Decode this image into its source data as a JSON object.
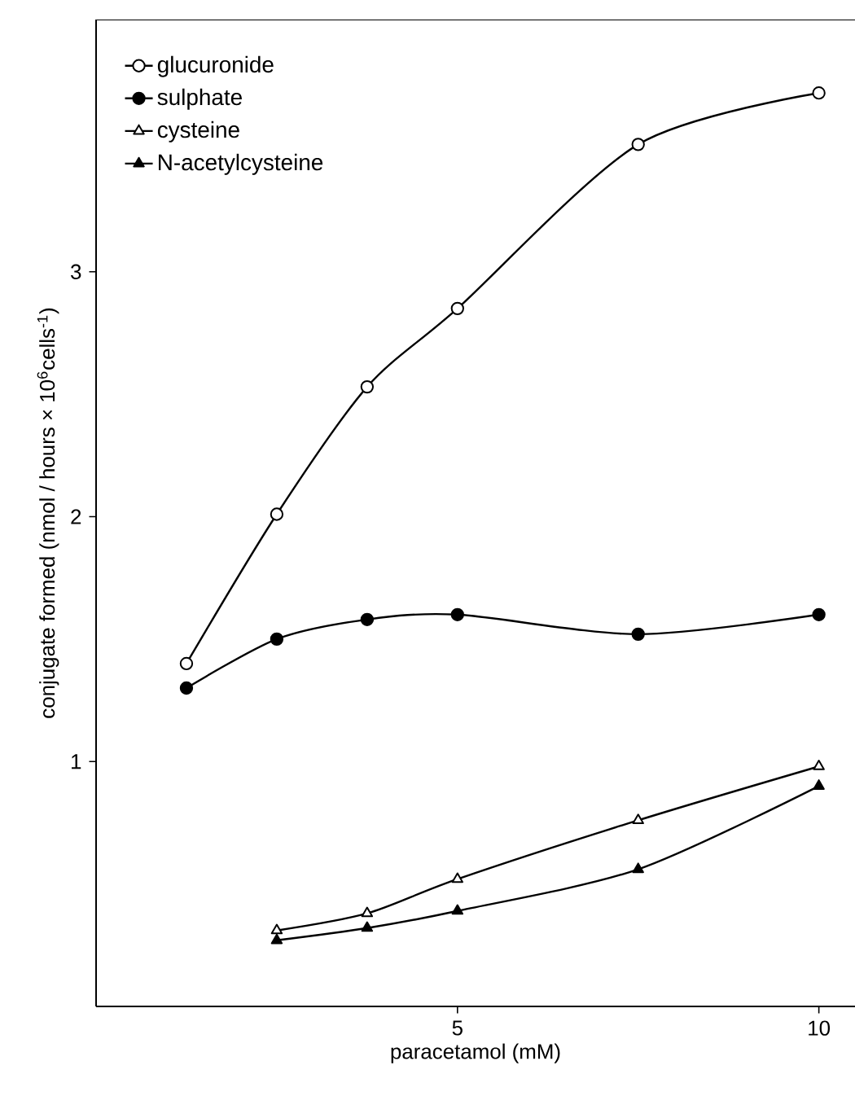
{
  "chart_data": {
    "type": "line",
    "xlabel": "paracetamol (mM)",
    "ylabel": "conjugate formed (nmol / hours × 10$^{6}$cells$^{-1}$)",
    "xlim": [
      0,
      10.5
    ],
    "ylim": [
      0,
      4.03
    ],
    "xticks": [
      5,
      10
    ],
    "yticks": [
      1,
      2,
      3
    ],
    "grid": false,
    "legend": "top left",
    "line_style": "solid",
    "series": [
      {
        "name": "glucuronide",
        "color": "#000000",
        "marker": "circle",
        "x": [
          1.25,
          2.5,
          3.75,
          5,
          7.5,
          10
        ],
        "values": [
          1.4,
          2.01,
          2.53,
          2.85,
          3.52,
          3.73
        ]
      },
      {
        "name": "sulphate",
        "color": "#000000",
        "marker": "circle",
        "x": [
          1.25,
          2.5,
          3.75,
          5,
          7.5,
          10
        ],
        "values": [
          1.3,
          1.5,
          1.58,
          1.6,
          1.52,
          1.6
        ]
      },
      {
        "name": "cysteine",
        "color": "#000000",
        "marker": "triangle",
        "x": [
          2.5,
          3.75,
          5,
          7.5,
          10
        ],
        "values": [
          0.31,
          0.38,
          0.52,
          0.76,
          0.98
        ]
      },
      {
        "name": "N-acetylcysteine",
        "color": "#000000",
        "marker": "triangle",
        "x": [
          2.5,
          3.75,
          5,
          7.5,
          10
        ],
        "values": [
          0.27,
          0.32,
          0.39,
          0.56,
          0.9
        ]
      }
    ]
  }
}
